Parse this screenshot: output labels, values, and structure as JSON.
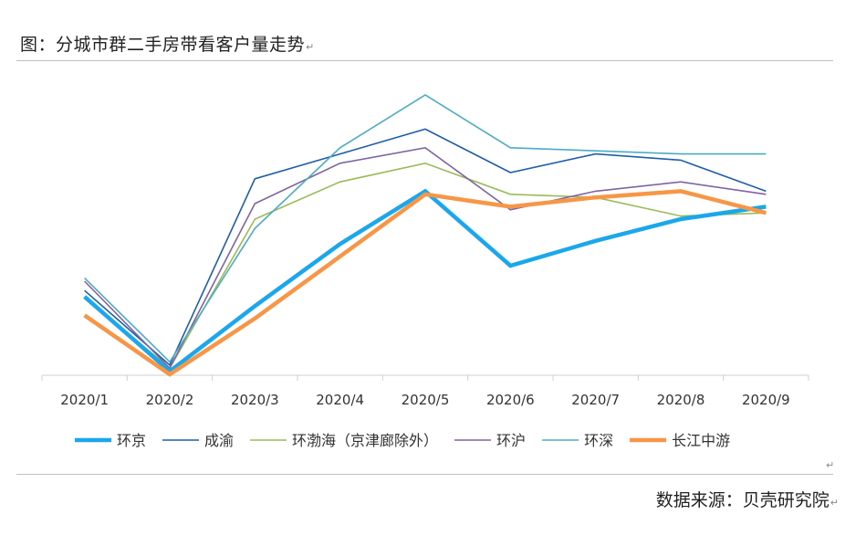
{
  "title": "图：分城市群二手房带看客户量走势",
  "source": "数据来源：贝壳研究院",
  "chart_data": {
    "type": "line",
    "categories": [
      "2020/1",
      "2020/2",
      "2020/3",
      "2020/4",
      "2020/5",
      "2020/6",
      "2020/7",
      "2020/8",
      "2020/9"
    ],
    "ylim": [
      0,
      100
    ],
    "grid": false,
    "legend_position": "bottom",
    "series": [
      {
        "name": "环京",
        "color": "#1aa7ec",
        "width": 4.5,
        "values": [
          25,
          1,
          22,
          42,
          59,
          35,
          43,
          50,
          54
        ]
      },
      {
        "name": "成渝",
        "color": "#1f5ea8",
        "width": 1.6,
        "values": [
          27,
          3,
          63,
          71,
          79,
          65,
          71,
          69,
          59
        ]
      },
      {
        "name": "环渤海（京津廊除外）",
        "color": "#9bbb59",
        "width": 1.6,
        "values": [
          25,
          2,
          50,
          62,
          68,
          58,
          57,
          51,
          52
        ]
      },
      {
        "name": "环沪",
        "color": "#8064a2",
        "width": 1.6,
        "values": [
          30,
          2,
          55,
          68,
          73,
          53,
          59,
          62,
          58
        ]
      },
      {
        "name": "环深",
        "color": "#4bacc6",
        "width": 1.6,
        "values": [
          31,
          4,
          47,
          73,
          90,
          73,
          72,
          71,
          71
        ]
      },
      {
        "name": "长江中游",
        "color": "#f79646",
        "width": 4.5,
        "values": [
          19,
          0,
          18,
          38,
          58,
          54,
          57,
          59,
          52
        ]
      }
    ]
  }
}
